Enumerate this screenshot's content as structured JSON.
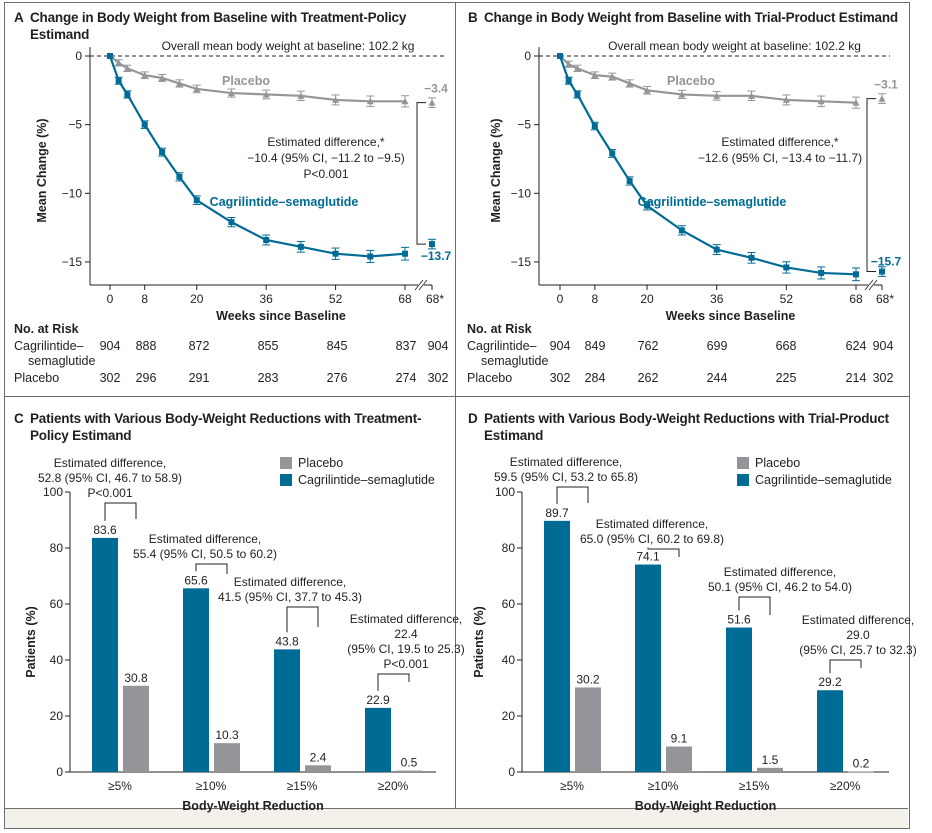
{
  "colors": {
    "cagri": "#006c96",
    "placebo": "#939598",
    "text": "#231f20"
  },
  "panels": {
    "A": {
      "letter": "A",
      "title": "Change in Body Weight from Baseline with Treatment-Policy Estimand",
      "title_line1": "Change in Body Weight from Baseline with Treatment-Policy",
      "title_line2": "Estimand"
    },
    "B": {
      "letter": "B",
      "title": "Change in Body Weight from Baseline with Trial-Product Estimand"
    },
    "C": {
      "letter": "C",
      "title": "Patients with Various Body-Weight Reductions with Treatment-Policy Estimand",
      "title_line1": "Patients with Various Body-Weight Reductions with Treatment-",
      "title_line2": "Policy Estimand"
    },
    "D": {
      "letter": "D",
      "title": "Patients with Various Body-Weight Reductions with Trial-Product Estimand",
      "title_line1": "Patients with Various Body-Weight Reductions with Trial-Product",
      "title_line2": "Estimand"
    }
  },
  "risk_tables": {
    "A": {
      "header": "No. at Risk",
      "rows": [
        {
          "label1": "Cagrilintide–",
          "label2": "semaglutide",
          "values": [
            "904",
            "888",
            "872",
            "855",
            "845",
            "837",
            "904"
          ]
        },
        {
          "label1": "Placebo",
          "label2": "",
          "values": [
            "302",
            "296",
            "291",
            "283",
            "276",
            "274",
            "302"
          ]
        }
      ]
    },
    "B": {
      "header": "No. at Risk",
      "rows": [
        {
          "label1": "Cagrilintide–",
          "label2": "semaglutide",
          "values": [
            "904",
            "849",
            "762",
            "699",
            "668",
            "624",
            "904"
          ]
        },
        {
          "label1": "Placebo",
          "label2": "",
          "values": [
            "302",
            "284",
            "262",
            "244",
            "225",
            "214",
            "302"
          ]
        }
      ]
    }
  },
  "chart_data": [
    {
      "id": "A",
      "type": "line",
      "title": "Change in Body Weight from Baseline with Treatment-Policy Estimand",
      "xlabel": "Weeks since Baseline",
      "ylabel": "Mean Change (%)",
      "x_ticks": [
        "0",
        "8",
        "20",
        "36",
        "52",
        "68",
        "68*"
      ],
      "y_ticks": [
        "0",
        "−5",
        "−10",
        "−15"
      ],
      "ylim": [
        -16.5,
        0.5
      ],
      "xlim": [
        0,
        68
      ],
      "baseline_label": "Overall mean body weight at baseline: 102.2 kg",
      "x": [
        0,
        2,
        4,
        8,
        12,
        16,
        20,
        28,
        36,
        44,
        52,
        60,
        68
      ],
      "series": [
        {
          "name": "Placebo",
          "values": [
            0,
            -0.5,
            -0.9,
            -1.4,
            -1.6,
            -2.0,
            -2.4,
            -2.7,
            -2.8,
            -2.9,
            -3.2,
            -3.3,
            -3.3
          ],
          "endpoint_68star": -3.4,
          "endpoint_label": "−3.4"
        },
        {
          "name": "Cagrilintide–semaglutide",
          "values": [
            0,
            -1.8,
            -2.8,
            -5.0,
            -7.0,
            -8.8,
            -10.5,
            -12.1,
            -13.4,
            -13.9,
            -14.4,
            -14.6,
            -14.4
          ],
          "endpoint_68star": -13.7,
          "endpoint_label": "−13.7"
        }
      ],
      "annotation": {
        "line1": "Estimated difference,*",
        "line2": "−10.4 (95% CI, −11.2 to −9.5)",
        "line3": "P<0.001"
      }
    },
    {
      "id": "B",
      "type": "line",
      "title": "Change in Body Weight from Baseline with Trial-Product Estimand",
      "xlabel": "Weeks since Baseline",
      "ylabel": "Mean Change (%)",
      "x_ticks": [
        "0",
        "8",
        "20",
        "36",
        "52",
        "68",
        "68*"
      ],
      "y_ticks": [
        "0",
        "−5",
        "−10",
        "−15"
      ],
      "ylim": [
        -16.5,
        0.5
      ],
      "xlim": [
        0,
        68
      ],
      "baseline_label": "Overall mean body weight at baseline: 102.2 kg",
      "x": [
        0,
        2,
        4,
        8,
        12,
        16,
        20,
        28,
        36,
        44,
        52,
        60,
        68
      ],
      "series": [
        {
          "name": "Placebo",
          "values": [
            0,
            -0.6,
            -0.9,
            -1.4,
            -1.5,
            -2.0,
            -2.5,
            -2.8,
            -2.9,
            -2.9,
            -3.2,
            -3.3,
            -3.4
          ],
          "endpoint_68star": -3.1,
          "endpoint_label": "−3.1"
        },
        {
          "name": "Cagrilintide–semaglutide",
          "values": [
            0,
            -1.8,
            -2.8,
            -5.1,
            -7.1,
            -9.1,
            -10.9,
            -12.7,
            -14.1,
            -14.7,
            -15.4,
            -15.8,
            -15.9
          ],
          "endpoint_68star": -15.7,
          "endpoint_label": "−15.7"
        }
      ],
      "annotation": {
        "line1": "Estimated difference,*",
        "line2": "−12.6 (95% CI, −13.4 to −11.7)",
        "line3": ""
      }
    },
    {
      "id": "C",
      "type": "bar",
      "title": "Patients with Various Body-Weight Reductions with Treatment-Policy Estimand",
      "xlabel": "Body-Weight Reduction",
      "ylabel": "Patients (%)",
      "categories": [
        "≥5%",
        "≥10%",
        "≥15%",
        "≥20%"
      ],
      "y_ticks": [
        "0",
        "20",
        "40",
        "60",
        "80",
        "100"
      ],
      "ylim": [
        0,
        100
      ],
      "legend": [
        "Placebo",
        "Cagrilintide–semaglutide"
      ],
      "legend_position": "top-right",
      "series": [
        {
          "name": "Cagrilintide–semaglutide",
          "values": [
            83.6,
            65.6,
            43.8,
            22.9
          ],
          "labels": [
            "83.6",
            "65.6",
            "43.8",
            "22.9"
          ]
        },
        {
          "name": "Placebo",
          "values": [
            30.8,
            10.3,
            2.4,
            0.5
          ],
          "labels": [
            "30.8",
            "10.3",
            "2.4",
            "0.5"
          ]
        }
      ],
      "annotations": [
        {
          "lines": [
            "Estimated difference,",
            "52.8 (95% CI, 46.7 to 58.9)",
            "P<0.001"
          ]
        },
        {
          "lines": [
            "Estimated difference,",
            "55.4 (95% CI, 50.5 to 60.2)"
          ]
        },
        {
          "lines": [
            "Estimated difference,",
            "41.5 (95% CI, 37.7 to 45.3)"
          ]
        },
        {
          "lines": [
            "Estimated difference,",
            "22.4",
            "(95% CI, 19.5 to 25.3)",
            "P<0.001"
          ]
        }
      ]
    },
    {
      "id": "D",
      "type": "bar",
      "title": "Patients with Various Body-Weight Reductions with Trial-Product Estimand",
      "xlabel": "Body-Weight Reduction",
      "ylabel": "Patients (%)",
      "categories": [
        "≥5%",
        "≥10%",
        "≥15%",
        "≥20%"
      ],
      "y_ticks": [
        "0",
        "20",
        "40",
        "60",
        "80",
        "100"
      ],
      "ylim": [
        0,
        100
      ],
      "legend": [
        "Placebo",
        "Cagrilintide–semaglutide"
      ],
      "legend_position": "top-right",
      "series": [
        {
          "name": "Cagrilintide–semaglutide",
          "values": [
            89.7,
            74.1,
            51.6,
            29.2
          ],
          "labels": [
            "89.7",
            "74.1",
            "51.6",
            "29.2"
          ]
        },
        {
          "name": "Placebo",
          "values": [
            30.2,
            9.1,
            1.5,
            0.2
          ],
          "labels": [
            "30.2",
            "9.1",
            "1.5",
            "0.2"
          ]
        }
      ],
      "annotations": [
        {
          "lines": [
            "Estimated difference,",
            "59.5 (95% CI, 53.2 to 65.8)"
          ]
        },
        {
          "lines": [
            "Estimated difference,",
            "65.0 (95% CI, 60.2 to 69.8)"
          ]
        },
        {
          "lines": [
            "Estimated difference,",
            "50.1 (95% CI, 46.2 to 54.0)"
          ]
        },
        {
          "lines": [
            "Estimated difference,",
            "29.0",
            "(95% CI, 25.7 to 32.3)"
          ]
        }
      ]
    }
  ]
}
